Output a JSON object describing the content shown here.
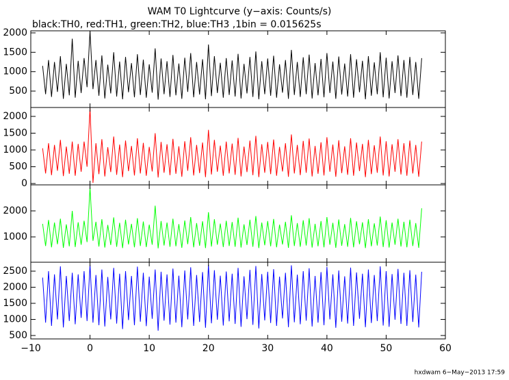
{
  "title": "WAM T0 Lightcurve (y−axis: Counts/s)",
  "subtitle": "black:TH0, red:TH1, green:TH2, blue:TH3 ,1bin = 0.015625s",
  "footer": "hxdwam  6−May−2013 17:59",
  "chart_data": [
    {
      "type": "line",
      "color": "#000000",
      "xlim": [
        -10,
        60
      ],
      "ylim": [
        77,
        2053
      ],
      "yticks": [
        500,
        1000,
        1500,
        2000
      ],
      "x": [
        -8,
        -7.5,
        -7,
        -6.5,
        -6,
        -5.5,
        -5,
        -4.5,
        -4,
        -3.5,
        -3,
        -2.5,
        -2,
        -1.5,
        -1,
        -0.5,
        0,
        0.5,
        1,
        1.5,
        2,
        2.5,
        3,
        3.5,
        4,
        4.5,
        5,
        5.5,
        6,
        6.5,
        7,
        7.5,
        8,
        8.5,
        9,
        9.5,
        10,
        10.5,
        11,
        11.5,
        12,
        12.5,
        13,
        13.5,
        14,
        14.5,
        15,
        15.5,
        16,
        16.5,
        17,
        17.5,
        18,
        18.5,
        19,
        19.5,
        20,
        20.5,
        21,
        21.5,
        22,
        22.5,
        23,
        23.5,
        24,
        24.5,
        25,
        25.5,
        26,
        26.5,
        27,
        27.5,
        28,
        28.5,
        29,
        29.5,
        30,
        30.5,
        31,
        31.5,
        32,
        32.5,
        33,
        33.5,
        34,
        34.5,
        35,
        35.5,
        36,
        36.5,
        37,
        37.5,
        38,
        38.5,
        39,
        39.5,
        40,
        40.5,
        41,
        41.5,
        42,
        42.5,
        43,
        43.5,
        44,
        44.5,
        45,
        45.5,
        46,
        46.5,
        47,
        47.5,
        48,
        48.5,
        49,
        49.5,
        50,
        50.5,
        51,
        51.5,
        52,
        52.5,
        53,
        53.5,
        54,
        54.5,
        55,
        55.5,
        56
      ],
      "values": [
        1150,
        420,
        1300,
        350,
        1250,
        480,
        1400,
        300,
        1200,
        390,
        1850,
        330,
        1280,
        450,
        1350,
        600,
        2050,
        550,
        1300,
        380,
        1420,
        310,
        1180,
        440,
        1500,
        360,
        1260,
        290,
        1380,
        470,
        1220,
        340,
        1450,
        400,
        1310,
        330,
        1190,
        460,
        1600,
        280,
        1340,
        420,
        1270,
        350,
        1430,
        390,
        1210,
        300,
        1360,
        480,
        1480,
        340,
        1250,
        410,
        1320,
        290,
        1700,
        370,
        1400,
        450,
        1230,
        330,
        1350,
        400,
        1290,
        360,
        1460,
        310,
        1200,
        440,
        1380,
        350,
        1520,
        290,
        1270,
        420,
        1340,
        380,
        1410,
        330,
        1190,
        460,
        1300,
        300,
        1560,
        400,
        1250,
        350,
        1370,
        420,
        1440,
        310,
        1220,
        390,
        1330,
        340,
        1480,
        450,
        1260,
        300,
        1390,
        410,
        1210,
        360,
        1450,
        330,
        1320,
        470,
        1280,
        290,
        1400,
        380,
        1240,
        420,
        1500,
        340,
        1360,
        310,
        1270,
        450,
        1420,
        370,
        1300,
        330,
        1380,
        400,
        1250,
        300,
        1350
      ]
    },
    {
      "type": "line",
      "color": "#ff0000",
      "xlim": [
        -10,
        60
      ],
      "ylim": [
        -40,
        2265
      ],
      "yticks": [
        0,
        500,
        1000,
        1500,
        2000
      ],
      "x": [
        -8,
        -7.5,
        -7,
        -6.5,
        -6,
        -5.5,
        -5,
        -4.5,
        -4,
        -3.5,
        -3,
        -2.5,
        -2,
        -1.5,
        -1,
        -0.5,
        0,
        0.5,
        1,
        1.5,
        2,
        2.5,
        3,
        3.5,
        4,
        4.5,
        5,
        5.5,
        6,
        6.5,
        7,
        7.5,
        8,
        8.5,
        9,
        9.5,
        10,
        10.5,
        11,
        11.5,
        12,
        12.5,
        13,
        13.5,
        14,
        14.5,
        15,
        15.5,
        16,
        16.5,
        17,
        17.5,
        18,
        18.5,
        19,
        19.5,
        20,
        20.5,
        21,
        21.5,
        22,
        22.5,
        23,
        23.5,
        24,
        24.5,
        25,
        25.5,
        26,
        26.5,
        27,
        27.5,
        28,
        28.5,
        29,
        29.5,
        30,
        30.5,
        31,
        31.5,
        32,
        32.5,
        33,
        33.5,
        34,
        34.5,
        35,
        35.5,
        36,
        36.5,
        37,
        37.5,
        38,
        38.5,
        39,
        39.5,
        40,
        40.5,
        41,
        41.5,
        42,
        42.5,
        43,
        43.5,
        44,
        44.5,
        45,
        45.5,
        46,
        46.5,
        47,
        47.5,
        48,
        48.5,
        49,
        49.5,
        50,
        50.5,
        51,
        51.5,
        52,
        52.5,
        53,
        53.5,
        54,
        54.5,
        55,
        55.5,
        56
      ],
      "values": [
        1050,
        300,
        1200,
        250,
        1150,
        380,
        1300,
        220,
        1100,
        290,
        1250,
        230,
        1180,
        350,
        1250,
        500,
        2250,
        20,
        1200,
        280,
        1320,
        210,
        1080,
        340,
        1400,
        260,
        1160,
        190,
        1280,
        370,
        1120,
        240,
        1350,
        300,
        1210,
        230,
        1090,
        360,
        1500,
        180,
        1240,
        320,
        1170,
        250,
        1330,
        290,
        1110,
        200,
        1260,
        380,
        1380,
        240,
        1150,
        310,
        1220,
        190,
        1600,
        270,
        1300,
        350,
        1130,
        230,
        1250,
        300,
        1190,
        260,
        1360,
        210,
        1100,
        340,
        1280,
        250,
        1420,
        190,
        1170,
        320,
        1240,
        280,
        1310,
        230,
        1090,
        360,
        1200,
        200,
        1460,
        300,
        1150,
        250,
        1270,
        320,
        1340,
        210,
        1120,
        290,
        1230,
        240,
        1380,
        350,
        1160,
        200,
        1290,
        310,
        1110,
        260,
        1350,
        230,
        1220,
        370,
        1180,
        190,
        1300,
        280,
        1140,
        320,
        1400,
        240,
        1260,
        210,
        1170,
        350,
        1320,
        270,
        1200,
        230,
        1280,
        300,
        1150,
        200,
        1250
      ]
    },
    {
      "type": "line",
      "color": "#00ff00",
      "xlim": [
        -10,
        60
      ],
      "ylim": [
        26,
        3000
      ],
      "yticks": [
        1000,
        2000
      ],
      "x": [
        -8,
        -7.5,
        -7,
        -6.5,
        -6,
        -5.5,
        -5,
        -4.5,
        -4,
        -3.5,
        -3,
        -2.5,
        -2,
        -1.5,
        -1,
        -0.5,
        0,
        0.5,
        1,
        1.5,
        2,
        2.5,
        3,
        3.5,
        4,
        4.5,
        5,
        5.5,
        6,
        6.5,
        7,
        7.5,
        8,
        8.5,
        9,
        9.5,
        10,
        10.5,
        11,
        11.5,
        12,
        12.5,
        13,
        13.5,
        14,
        14.5,
        15,
        15.5,
        16,
        16.5,
        17,
        17.5,
        18,
        18.5,
        19,
        19.5,
        20,
        20.5,
        21,
        21.5,
        22,
        22.5,
        23,
        23.5,
        24,
        24.5,
        25,
        25.5,
        26,
        26.5,
        27,
        27.5,
        28,
        28.5,
        29,
        29.5,
        30,
        30.5,
        31,
        31.5,
        32,
        32.5,
        33,
        33.5,
        34,
        34.5,
        35,
        35.5,
        36,
        36.5,
        37,
        37.5,
        38,
        38.5,
        39,
        39.5,
        40,
        40.5,
        41,
        41.5,
        42,
        42.5,
        43,
        43.5,
        44,
        44.5,
        45,
        45.5,
        46,
        46.5,
        47,
        47.5,
        48,
        48.5,
        49,
        49.5,
        50,
        50.5,
        51,
        51.5,
        52,
        52.5,
        53,
        53.5,
        54,
        54.5,
        55,
        55.5,
        56
      ],
      "values": [
        1500,
        650,
        1650,
        600,
        1550,
        720,
        1700,
        580,
        1480,
        640,
        2000,
        610,
        1560,
        700,
        1620,
        800,
        2900,
        850,
        1580,
        630,
        1680,
        590,
        1460,
        690,
        1750,
        620,
        1540,
        570,
        1660,
        710,
        1500,
        600,
        1720,
        650,
        1590,
        610,
        1470,
        700,
        2200,
        560,
        1610,
        670,
        1550,
        620,
        1700,
        640,
        1490,
        580,
        1630,
        720,
        1760,
        600,
        1530,
        660,
        1600,
        570,
        1950,
        630,
        1680,
        700,
        1510,
        610,
        1620,
        650,
        1570,
        620,
        1740,
        590,
        1480,
        690,
        1660,
        620,
        1800,
        570,
        1550,
        680,
        1610,
        640,
        1690,
        600,
        1470,
        710,
        1580,
        580,
        1830,
        650,
        1530,
        620,
        1640,
        670,
        1720,
        590,
        1500,
        640,
        1610,
        600,
        1760,
        700,
        1540,
        580,
        1670,
        660,
        1490,
        620,
        1730,
        600,
        1600,
        720,
        1560,
        570,
        1680,
        640,
        1520,
        670,
        1780,
        610,
        1640,
        590,
        1550,
        700,
        1700,
        630,
        1580,
        600,
        1660,
        650,
        1530,
        580,
        2100
      ]
    },
    {
      "type": "line",
      "color": "#0000ff",
      "xlim": [
        -10,
        60
      ],
      "ylim": [
        394,
        2777
      ],
      "yticks": [
        500,
        1000,
        1500,
        2000,
        2500
      ],
      "xticks": [
        {
          "value": -10,
          "label": "−10"
        },
        0,
        10,
        20,
        30,
        40,
        50,
        60
      ],
      "x": [
        -8,
        -7.5,
        -7,
        -6.5,
        -6,
        -5.5,
        -5,
        -4.5,
        -4,
        -3.5,
        -3,
        -2.5,
        -2,
        -1.5,
        -1,
        -0.5,
        0,
        0.5,
        1,
        1.5,
        2,
        2.5,
        3,
        3.5,
        4,
        4.5,
        5,
        5.5,
        6,
        6.5,
        7,
        7.5,
        8,
        8.5,
        9,
        9.5,
        10,
        10.5,
        11,
        11.5,
        12,
        12.5,
        13,
        13.5,
        14,
        14.5,
        15,
        15.5,
        16,
        16.5,
        17,
        17.5,
        18,
        18.5,
        19,
        19.5,
        20,
        20.5,
        21,
        21.5,
        22,
        22.5,
        23,
        23.5,
        24,
        24.5,
        25,
        25.5,
        26,
        26.5,
        27,
        27.5,
        28,
        28.5,
        29,
        29.5,
        30,
        30.5,
        31,
        31.5,
        32,
        32.5,
        33,
        33.5,
        34,
        34.5,
        35,
        35.5,
        36,
        36.5,
        37,
        37.5,
        38,
        38.5,
        39,
        39.5,
        40,
        40.5,
        41,
        41.5,
        42,
        42.5,
        43,
        43.5,
        44,
        44.5,
        45,
        45.5,
        46,
        46.5,
        47,
        47.5,
        48,
        48.5,
        49,
        49.5,
        50,
        50.5,
        51,
        51.5,
        52,
        52.5,
        53,
        53.5,
        54,
        54.5,
        55,
        55.5,
        56
      ],
      "values": [
        2300,
        900,
        2500,
        800,
        2400,
        1000,
        2650,
        750,
        2350,
        950,
        2450,
        850,
        2400,
        1050,
        2500,
        950,
        2700,
        900,
        2380,
        820,
        2550,
        780,
        2320,
        1000,
        2600,
        870,
        2420,
        700,
        2500,
        980,
        2350,
        820,
        2640,
        930,
        2450,
        790,
        2330,
        1020,
        2550,
        650,
        2480,
        960,
        2400,
        840,
        2580,
        900,
        2360,
        760,
        2520,
        1000,
        2620,
        800,
        2380,
        920,
        2470,
        740,
        2700,
        880,
        2530,
        990,
        2360,
        810,
        2490,
        940,
        2420,
        860,
        2600,
        770,
        2340,
        1010,
        2540,
        830,
        2660,
        720,
        2410,
        970,
        2480,
        890,
        2560,
        800,
        2330,
        1030,
        2450,
        760,
        2680,
        910,
        2390,
        850,
        2500,
        960,
        2590,
        780,
        2350,
        900,
        2470,
        820,
        2630,
        1000,
        2400,
        740,
        2520,
        930,
        2340,
        870,
        2610,
        800,
        2460,
        1020,
        2420,
        760,
        2550,
        890,
        2380,
        950,
        2650,
        810,
        2500,
        770,
        2410,
        990,
        2570,
        860,
        2450,
        800,
        2530,
        920,
        2390,
        750,
        2480
      ]
    }
  ]
}
